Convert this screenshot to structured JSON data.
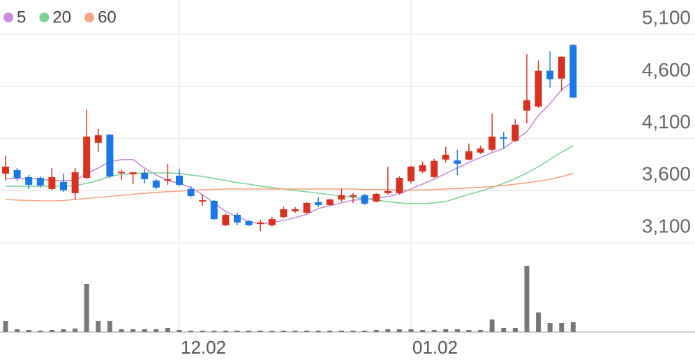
{
  "chart_data": {
    "type": "candlestick",
    "categories": [
      null,
      null,
      null,
      null,
      null,
      null,
      null,
      null,
      null,
      null,
      null,
      null,
      null,
      null,
      null,
      "12.02",
      null,
      null,
      null,
      null,
      null,
      null,
      null,
      null,
      null,
      null,
      null,
      null,
      null,
      null,
      null,
      null,
      null,
      null,
      null,
      "01.02",
      null,
      null,
      null,
      null,
      null,
      null,
      null,
      null,
      null,
      null,
      null,
      null,
      null,
      null
    ],
    "open": [
      3764,
      3797,
      3730,
      3723,
      3616,
      3683,
      3576,
      3723,
      4059,
      4139,
      3767,
      3757,
      3770,
      3697,
      3697,
      3744,
      3616,
      3495,
      3502,
      3267,
      3368,
      3307,
      3280,
      3267,
      3347,
      3401,
      3388,
      3489,
      3462,
      3515,
      3542,
      3556,
      3495,
      3576,
      3576,
      3690,
      3784,
      3730,
      3898,
      3891,
      3898,
      3965,
      3992,
      4113,
      4079,
      4368,
      4408,
      4750,
      4676,
      4999
    ],
    "high": [
      3938,
      3818,
      3750,
      3737,
      3817,
      3764,
      3817,
      4374,
      4193,
      4140,
      3797,
      3777,
      3804,
      3710,
      3858,
      3811,
      3643,
      3562,
      3509,
      3381,
      3388,
      3314,
      3321,
      3347,
      3448,
      3441,
      3489,
      3536,
      3522,
      3616,
      3576,
      3569,
      3576,
      3831,
      3737,
      3838,
      3878,
      3905,
      4019,
      3992,
      4052,
      4032,
      4341,
      4166,
      4287,
      4911,
      4851,
      4938,
      4891,
      5005
    ],
    "low": [
      3697,
      3697,
      3616,
      3630,
      3603,
      3589,
      3515,
      3710,
      3972,
      3723,
      3697,
      3663,
      3670,
      3616,
      3656,
      3643,
      3535,
      3455,
      3321,
      3260,
      3267,
      3260,
      3213,
      3253,
      3334,
      3388,
      3381,
      3441,
      3455,
      3495,
      3482,
      3462,
      3488,
      3562,
      3562,
      3670,
      3770,
      3723,
      3871,
      3750,
      3891,
      3952,
      3978,
      4005,
      4066,
      4247,
      4394,
      4589,
      4555,
      4488
    ],
    "close": [
      3831,
      3723,
      3656,
      3650,
      3730,
      3603,
      3777,
      4119,
      4133,
      3737,
      3780,
      3777,
      3710,
      3630,
      3710,
      3656,
      3549,
      3508,
      3327,
      3368,
      3294,
      3267,
      3294,
      3327,
      3421,
      3421,
      3482,
      3462,
      3515,
      3556,
      3556,
      3475,
      3569,
      3596,
      3723,
      3831,
      3844,
      3885,
      3945,
      3858,
      3978,
      4005,
      4119,
      4099,
      4233,
      4468,
      4750,
      4670,
      4884,
      4495
    ],
    "up_color": "#d9311f",
    "down_color": "#1a78e6",
    "series": [
      {
        "name": "5",
        "color": "#c98be0",
        "values": [
          3717,
          3717,
          3717,
          3710,
          3697,
          3697,
          3697,
          3764,
          3817,
          3878,
          3898,
          3898,
          3817,
          3750,
          3697,
          3670,
          3630,
          3562,
          3482,
          3401,
          3347,
          3307,
          3280,
          3294,
          3314,
          3341,
          3374,
          3428,
          3455,
          3482,
          3509,
          3515,
          3529,
          3542,
          3569,
          3616,
          3663,
          3710,
          3764,
          3817,
          3871,
          3918,
          3965,
          4005,
          4086,
          4166,
          4321,
          4435,
          4569,
          4650
        ]
      },
      {
        "name": "20",
        "color": "#7dd39a",
        "values": [
          3643,
          3643,
          3643,
          3643,
          3643,
          3643,
          3650,
          3670,
          3697,
          3737,
          3757,
          3764,
          3770,
          3770,
          3770,
          3764,
          3750,
          3737,
          3717,
          3697,
          3677,
          3663,
          3643,
          3630,
          3616,
          3603,
          3589,
          3576,
          3562,
          3549,
          3535,
          3522,
          3509,
          3495,
          3482,
          3475,
          3475,
          3482,
          3495,
          3530,
          3565,
          3595,
          3630,
          3670,
          3715,
          3770,
          3830,
          3900,
          3970,
          4030
        ]
      },
      {
        "name": "60",
        "color": "#f4a582",
        "values": [
          3515,
          3510,
          3505,
          3502,
          3502,
          3505,
          3515,
          3525,
          3535,
          3545,
          3555,
          3565,
          3575,
          3583,
          3590,
          3596,
          3602,
          3608,
          3612,
          3616,
          3616,
          3616,
          3616,
          3616,
          3616,
          3616,
          3616,
          3616,
          3616,
          3616,
          3616,
          3610,
          3610,
          3610,
          3606,
          3606,
          3606,
          3610,
          3616,
          3620,
          3626,
          3632,
          3640,
          3650,
          3662,
          3675,
          3690,
          3710,
          3735,
          3764
        ]
      }
    ],
    "ylim": [
      3100,
      5430
    ],
    "yticks": [
      {
        "value": 5100,
        "label": "5,100"
      },
      {
        "value": 4600,
        "label": "4,600"
      },
      {
        "value": 4100,
        "label": "4,100"
      },
      {
        "value": 3600,
        "label": "3,600"
      },
      {
        "value": 3100,
        "label": "3,100"
      }
    ],
    "volume": [
      16,
      4,
      3,
      2,
      3,
      4,
      5,
      69,
      16,
      16,
      4,
      4,
      4,
      4,
      6,
      3,
      2,
      2,
      2,
      2,
      2,
      2,
      2,
      2,
      2,
      2,
      2,
      2,
      2,
      2,
      2,
      2,
      3,
      4,
      4,
      4,
      3,
      3,
      4,
      4,
      3,
      3,
      18,
      6,
      6,
      95,
      28,
      13,
      13,
      14
    ],
    "volume_color": "#777777",
    "volume_ylim": [
      0,
      100
    ],
    "grid": true
  }
}
